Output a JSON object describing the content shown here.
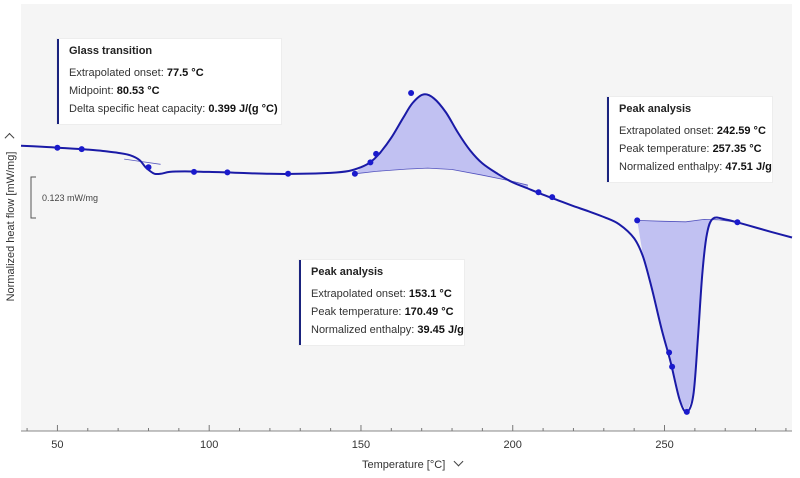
{
  "chart_data": {
    "type": "line",
    "xlabel": "Temperature [°C]",
    "ylabel": "Normalized heat flow [mW/mg]",
    "xlim": [
      38,
      292
    ],
    "x_ticks": [
      50,
      100,
      150,
      200,
      250
    ],
    "scale_bar_label": "0.123 mW/mg",
    "grid": false,
    "series": [
      {
        "values": [
          [
            38,
            1.45
          ],
          [
            45,
            1.43
          ],
          [
            50,
            1.41
          ],
          [
            55,
            1.39
          ],
          [
            60,
            1.37
          ],
          [
            65,
            1.34
          ],
          [
            70,
            1.3
          ],
          [
            74,
            1.25
          ],
          [
            77,
            1.15
          ],
          [
            79,
            1.0
          ],
          [
            80.5,
            0.92
          ],
          [
            82,
            0.86
          ],
          [
            84,
            0.86
          ],
          [
            87,
            0.9
          ],
          [
            92,
            0.91
          ],
          [
            100,
            0.9
          ],
          [
            110,
            0.88
          ],
          [
            120,
            0.86
          ],
          [
            130,
            0.86
          ],
          [
            140,
            0.88
          ],
          [
            146,
            0.92
          ],
          [
            150,
            1.0
          ],
          [
            153,
            1.1
          ],
          [
            156,
            1.28
          ],
          [
            160,
            1.62
          ],
          [
            164,
            2.05
          ],
          [
            167,
            2.35
          ],
          [
            170.5,
            2.53
          ],
          [
            174,
            2.45
          ],
          [
            178,
            2.15
          ],
          [
            182,
            1.72
          ],
          [
            186,
            1.35
          ],
          [
            190,
            1.08
          ],
          [
            195,
            0.86
          ],
          [
            200,
            0.68
          ],
          [
            205,
            0.55
          ],
          [
            210,
            0.42
          ],
          [
            215,
            0.3
          ],
          [
            220,
            0.18
          ],
          [
            225,
            0.07
          ],
          [
            230,
            -0.05
          ],
          [
            235,
            -0.2
          ],
          [
            240,
            -0.5
          ],
          [
            243,
            -0.9
          ],
          [
            246,
            -1.6
          ],
          [
            249,
            -2.4
          ],
          [
            252,
            -3.1
          ],
          [
            255,
            -3.9
          ],
          [
            257.35,
            -4.15
          ],
          [
            259.5,
            -3.8
          ],
          [
            261,
            -2.6
          ],
          [
            262.5,
            -1.2
          ],
          [
            264,
            -0.4
          ],
          [
            266,
            -0.08
          ],
          [
            270,
            -0.1
          ],
          [
            275,
            -0.18
          ],
          [
            280,
            -0.27
          ],
          [
            285,
            -0.36
          ],
          [
            292,
            -0.48
          ]
        ]
      }
    ],
    "baselines": [
      [
        [
          148,
          0.86
        ],
        [
          155,
          0.91
        ],
        [
          165,
          0.96
        ],
        [
          172,
          0.98
        ],
        [
          180,
          0.95
        ],
        [
          190,
          0.83
        ],
        [
          200,
          0.7
        ],
        [
          205,
          0.62
        ]
      ],
      [
        [
          241,
          -0.12
        ],
        [
          250,
          -0.14
        ],
        [
          257,
          -0.15
        ],
        [
          263,
          -0.1
        ],
        [
          268,
          -0.11
        ],
        [
          274,
          -0.16
        ]
      ],
      [
        [
          72,
          1.17
        ],
        [
          84,
          1.06
        ]
      ]
    ],
    "markers": [
      [
        50,
        1.41
      ],
      [
        58,
        1.38
      ],
      [
        80,
        1.0
      ],
      [
        95,
        0.9
      ],
      [
        106,
        0.89
      ],
      [
        126,
        0.86
      ],
      [
        148,
        0.86
      ],
      [
        153.1,
        1.1
      ],
      [
        155,
        1.28
      ],
      [
        166.5,
        2.56
      ],
      [
        208.5,
        0.47
      ],
      [
        213,
        0.37
      ],
      [
        241,
        -0.12
      ],
      [
        251.5,
        -2.9
      ],
      [
        252.5,
        -3.2
      ],
      [
        257.35,
        -4.15
      ],
      [
        274,
        -0.16
      ]
    ],
    "filled_regions": [
      {
        "from": 148,
        "to": 205,
        "baseline": 0
      },
      {
        "from": 241,
        "to": 266,
        "baseline": 1
      }
    ],
    "annotations": [
      {
        "title": "Glass transition",
        "rows": [
          {
            "label": "Extrapolated onset: ",
            "value": "77.5 °C"
          },
          {
            "label": "Midpoint: ",
            "value": "80.53 °C"
          },
          {
            "label": "Delta specific heat capacity: ",
            "value": "0.399 J/(g °C)"
          }
        ]
      },
      {
        "title": "Peak analysis",
        "rows": [
          {
            "label": "Extrapolated onset: ",
            "value": "153.1 °C"
          },
          {
            "label": "Peak temperature: ",
            "value": "170.49 °C"
          },
          {
            "label": "Normalized enthalpy: ",
            "value": "39.45 J/g"
          }
        ]
      },
      {
        "title": "Peak analysis",
        "rows": [
          {
            "label": "Extrapolated onset: ",
            "value": "242.59 °C"
          },
          {
            "label": "Peak temperature: ",
            "value": "257.35 °C"
          },
          {
            "label": "Normalized enthalpy: ",
            "value": "47.51 J/g"
          }
        ]
      }
    ],
    "colors": {
      "line": "#1a1aa6",
      "fill": "#9e9ef0",
      "marker": "#1a1acc",
      "plot_bg": "#f5f5f5",
      "annotation_border": "#1a237e"
    }
  }
}
